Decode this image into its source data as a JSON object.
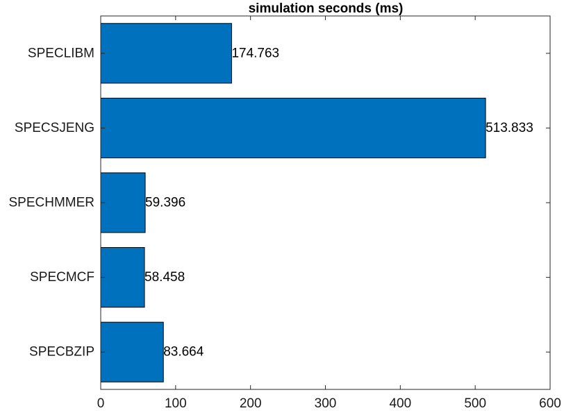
{
  "chart_data": {
    "type": "bar",
    "orientation": "horizontal",
    "title": "simulation seconds (ms)",
    "xlabel": "",
    "ylabel": "",
    "categories": [
      "SPECLIBM",
      "SPECSJENG",
      "SPECHMMER",
      "SPECMCF",
      "SPECBZIP"
    ],
    "values": [
      174.763,
      513.833,
      59.396,
      58.458,
      83.664
    ],
    "data_labels": [
      "174.763",
      "513.833",
      "59.396",
      "58.458",
      "83.664"
    ],
    "xlim": [
      0,
      600
    ],
    "xticks": [
      0,
      100,
      200,
      300,
      400,
      500,
      600
    ],
    "grid": false,
    "bar_color": "#0072bd"
  }
}
